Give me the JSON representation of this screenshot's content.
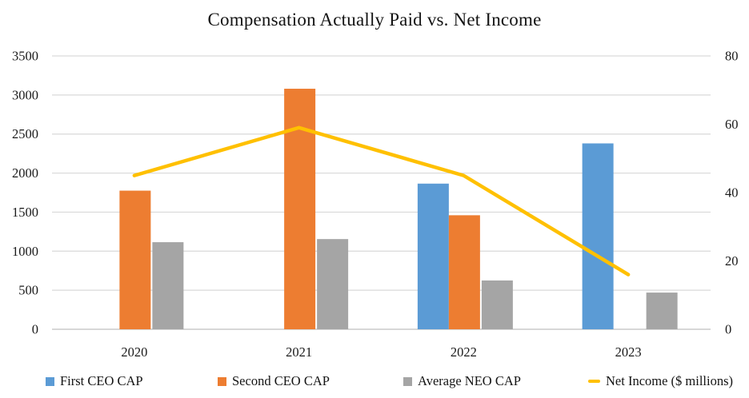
{
  "chart_data": {
    "type": "combo (bar + line)",
    "title": "Compensation Actually Paid vs. Net Income",
    "categories": [
      "2020",
      "2021",
      "2022",
      "2023"
    ],
    "series": [
      {
        "name": "First CEO CAP",
        "kind": "bar",
        "axis": "left",
        "color": "#5B9BD5",
        "values": [
          null,
          null,
          1865,
          2380
        ]
      },
      {
        "name": "Second CEO CAP",
        "kind": "bar",
        "axis": "left",
        "color": "#ED7D31",
        "values": [
          1775,
          3080,
          1460,
          null
        ]
      },
      {
        "name": "Average NEO CAP",
        "kind": "bar",
        "axis": "left",
        "color": "#A5A5A5",
        "values": [
          1115,
          1155,
          625,
          470
        ]
      },
      {
        "name": "Net Income ($ millions)",
        "kind": "line",
        "axis": "right",
        "color": "#FFC000",
        "values": [
          45,
          59,
          45,
          16
        ]
      }
    ],
    "left_axis": {
      "min": 0,
      "max": 3500,
      "ticks": [
        0,
        500,
        1000,
        1500,
        2000,
        2500,
        3000,
        3500
      ]
    },
    "right_axis": {
      "min": 0,
      "max": 80,
      "ticks": [
        0,
        20,
        40,
        60,
        80
      ]
    },
    "grid": true,
    "legend_position": "bottom",
    "colors": {
      "gridline": "#D9D9D9",
      "axis_line": "#BFBFBF",
      "text": "#1a1a1a"
    }
  }
}
